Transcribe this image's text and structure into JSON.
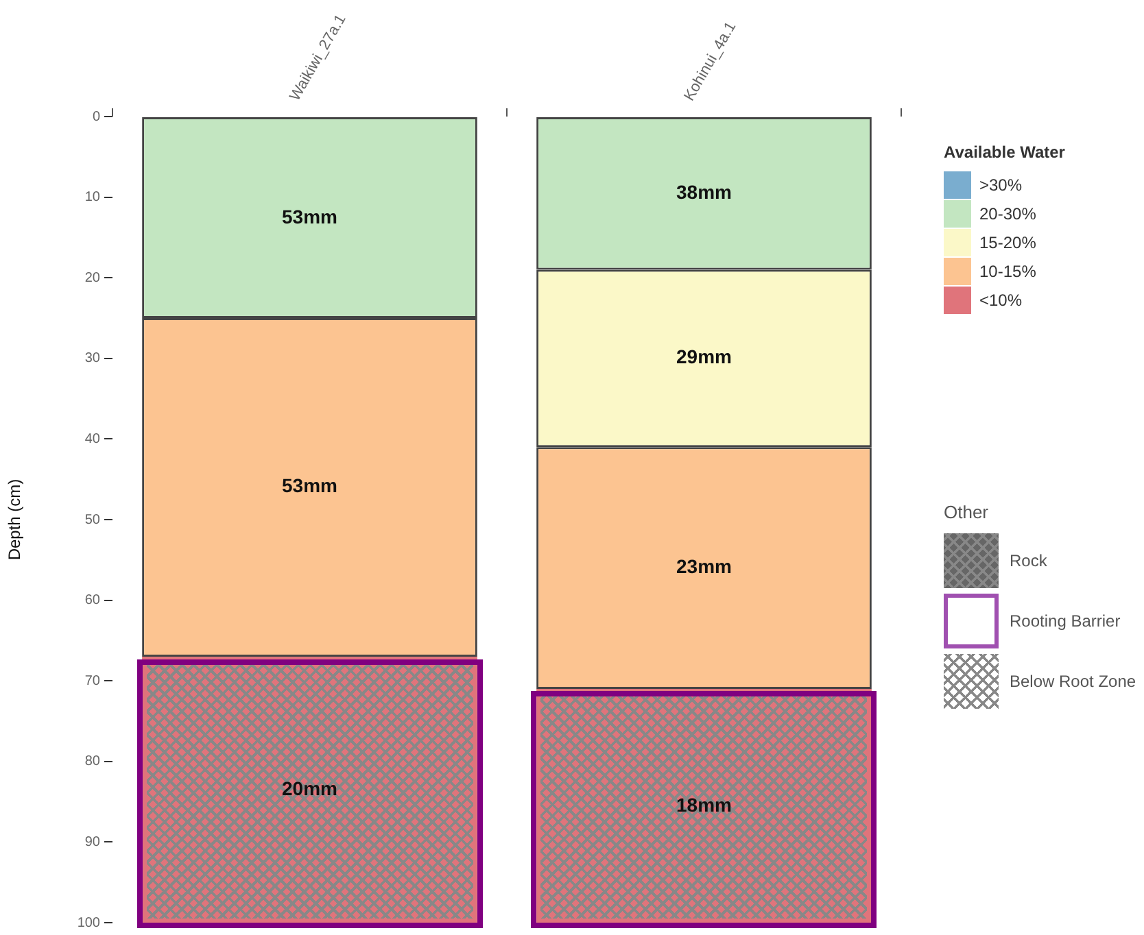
{
  "chart_data": {
    "type": "bar",
    "stacked": true,
    "ylabel": "Depth (cm)",
    "legend_title": "Available Water",
    "legend": "right",
    "grid": false,
    "categories": [
      "Waikiwi_27a.1",
      "Kohinui_4a.1"
    ],
    "ylim": [
      100,
      0
    ],
    "yticks": [
      0,
      10,
      20,
      30,
      40,
      50,
      60,
      70,
      80,
      90,
      100
    ],
    "series": [
      {
        "name": ">30%",
        "color": "#7aadcf",
        "values": [
          null,
          null
        ]
      },
      {
        "name": "20-30%",
        "color": "#c3e6c1",
        "values": [
          25,
          19
        ]
      },
      {
        "name": "15-20%",
        "color": "#fbf8c8",
        "values": [
          null,
          22
        ]
      },
      {
        "name": "10-15%",
        "color": "#fcc491",
        "values": [
          42,
          30
        ]
      },
      {
        "name": "<10%",
        "color": "#e0747b",
        "values": [
          33,
          29
        ]
      }
    ],
    "annotations": [
      "Other",
      "Rock",
      "Rooting Barrier",
      "Below Root Zone",
      "53mm",
      "53mm",
      "20mm",
      "38mm",
      "29mm",
      "23mm",
      "18mm"
    ]
  }
}
